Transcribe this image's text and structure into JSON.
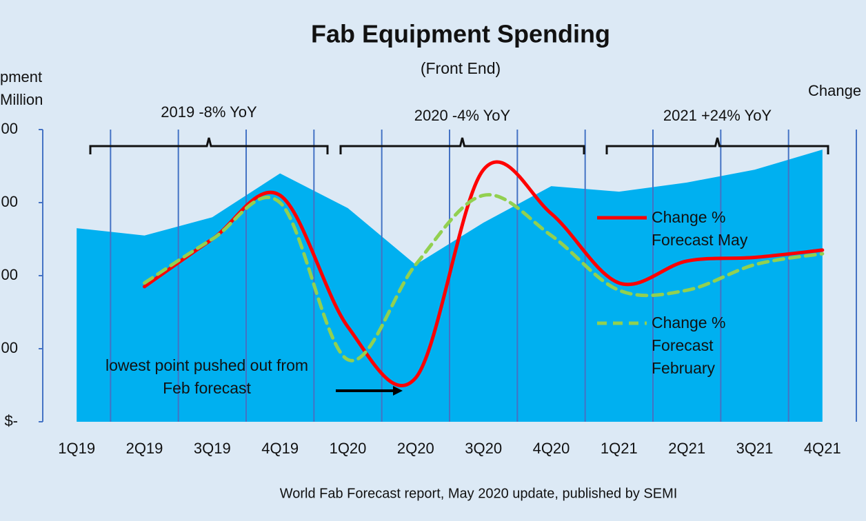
{
  "chart_data": {
    "type": "area-line",
    "title": "Fab Equipment Spending",
    "subtitle": "(Front End)",
    "y_label": [
      "pment",
      "Million"
    ],
    "y2_label": "Change",
    "footnote": "World Fab Forecast report, May 2020 update, published by SEMI",
    "categories": [
      "1Q19",
      "2Q19",
      "3Q19",
      "4Q19",
      "1Q20",
      "2Q20",
      "3Q20",
      "4Q20",
      "1Q21",
      "2Q21",
      "3Q21",
      "4Q21"
    ],
    "ylim": [
      0,
      16000
    ],
    "yticks": [
      {
        "value": 0,
        "label": "$-"
      },
      {
        "value": 4000,
        "label": "00"
      },
      {
        "value": 8000,
        "label": "00"
      },
      {
        "value": 12000,
        "label": "00"
      },
      {
        "value": 16000,
        "label": "00"
      }
    ],
    "y2lim": [
      -30,
      50
    ],
    "area": {
      "color": "#00b0f0",
      "values": [
        10600,
        10200,
        11200,
        13600,
        11700,
        8600,
        10900,
        12900,
        12600,
        13100,
        13800,
        14900
      ]
    },
    "series": [
      {
        "name": "Change % Forecast May",
        "color": "#ff0000",
        "dash": false,
        "axis": "y2",
        "values": [
          null,
          7,
          20,
          32,
          -4,
          -18,
          39,
          27,
          8,
          14,
          15,
          17
        ]
      },
      {
        "name": "Change % Forecast February",
        "color": "#92d050",
        "dash": true,
        "axis": "y2",
        "values": [
          null,
          8,
          20,
          30,
          -13,
          13,
          32,
          21,
          6,
          6,
          13,
          16
        ]
      }
    ],
    "brackets": [
      {
        "label": "2019 -8% YoY"
      },
      {
        "label": "2020 -4% YoY"
      },
      {
        "label": "2021 +24% YoY"
      }
    ],
    "annotation": "lowest point pushed out from Feb forecast"
  }
}
